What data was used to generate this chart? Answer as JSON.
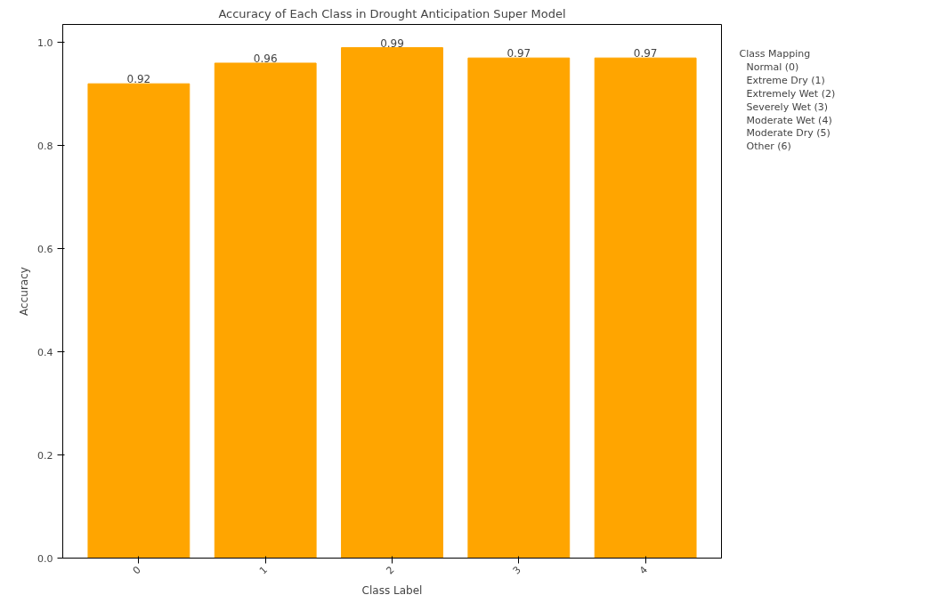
{
  "chart_data": {
    "type": "bar",
    "title": "Accuracy of Each Class in Drought Anticipation Super Model",
    "xlabel": "Class Label",
    "ylabel": "Accuracy",
    "categories": [
      "0",
      "1",
      "2",
      "3",
      "4"
    ],
    "values": [
      0.92,
      0.96,
      0.99,
      0.97,
      0.97
    ],
    "color": "#ffa500",
    "data_labels": true,
    "ylim": [
      0,
      1.035
    ],
    "yticks": [
      {
        "value": 0,
        "label": "0.0"
      },
      0.2,
      0.4,
      0.6,
      0.8,
      {
        "value": 1,
        "label": "1.0"
      }
    ],
    "grid": false,
    "legend_title": "Class Mapping",
    "annotations": [
      "Normal (0)",
      "Extreme Dry (1)",
      "Extremely Wet (2)",
      "Severely Wet (3)",
      "Moderate Wet (4)",
      "Moderate Dry (5)",
      "Other (6)"
    ]
  }
}
